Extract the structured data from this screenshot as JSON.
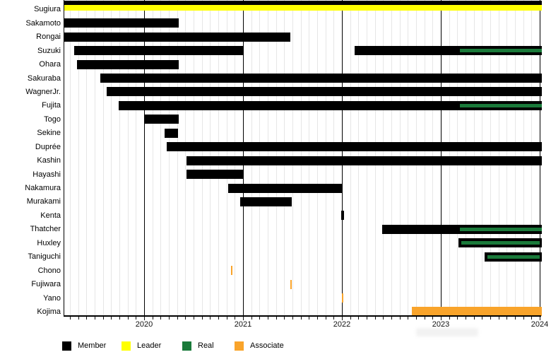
{
  "chart_data": {
    "type": "gantt",
    "title": "",
    "x_axis": {
      "start": 2019.19,
      "end": 2024.02,
      "year_ticks": [
        2020,
        2021,
        2022,
        2023,
        2024
      ],
      "minor_tick_unit": "month",
      "grid": true
    },
    "legend": [
      {
        "kind": "member",
        "label": "Member",
        "color": "#000000"
      },
      {
        "kind": "leader",
        "label": "Leader",
        "color": "#ffff00"
      },
      {
        "kind": "real",
        "label": "Real",
        "color": "#1a7a3a"
      },
      {
        "kind": "associate",
        "label": "Associate",
        "color": "#f9a42b"
      }
    ],
    "rows": [
      {
        "label": "Sugiura",
        "segments": [
          {
            "kind": "member",
            "start": 2019.19,
            "end": 2024.02,
            "lane": "upper"
          },
          {
            "kind": "leader",
            "start": 2019.19,
            "end": 2024.02,
            "lane": "lower"
          }
        ]
      },
      {
        "label": "Sakamoto",
        "segments": [
          {
            "kind": "member",
            "start": 2019.19,
            "end": 2020.35
          }
        ]
      },
      {
        "label": "Rongai",
        "segments": [
          {
            "kind": "member",
            "start": 2019.19,
            "end": 2021.48
          }
        ]
      },
      {
        "label": "Suzuki",
        "segments": [
          {
            "kind": "member",
            "start": 2019.29,
            "end": 2021.0
          },
          {
            "kind": "member",
            "start": 2022.13,
            "end": 2024.02
          },
          {
            "kind": "real",
            "start": 2023.19,
            "end": 2024.02
          }
        ]
      },
      {
        "label": "Ohara",
        "segments": [
          {
            "kind": "member",
            "start": 2019.32,
            "end": 2020.35
          }
        ]
      },
      {
        "label": "Sakuraba",
        "segments": [
          {
            "kind": "member",
            "start": 2019.56,
            "end": 2024.02
          }
        ]
      },
      {
        "label": "WagnerJr.",
        "segments": [
          {
            "kind": "member",
            "start": 2019.62,
            "end": 2024.02
          }
        ]
      },
      {
        "label": "Fujita",
        "segments": [
          {
            "kind": "member",
            "start": 2019.74,
            "end": 2024.02
          },
          {
            "kind": "real",
            "start": 2023.19,
            "end": 2024.02
          }
        ]
      },
      {
        "label": "Togo",
        "segments": [
          {
            "kind": "member",
            "start": 2020.0,
            "end": 2020.35
          }
        ]
      },
      {
        "label": "Sekine",
        "segments": [
          {
            "kind": "member",
            "start": 2020.21,
            "end": 2020.34
          }
        ]
      },
      {
        "label": "Duprée",
        "segments": [
          {
            "kind": "member",
            "start": 2020.23,
            "end": 2024.02
          }
        ]
      },
      {
        "label": "Kashin",
        "segments": [
          {
            "kind": "member",
            "start": 2020.43,
            "end": 2024.02
          }
        ]
      },
      {
        "label": "Hayashi",
        "segments": [
          {
            "kind": "member",
            "start": 2020.43,
            "end": 2021.0
          }
        ]
      },
      {
        "label": "Nakamura",
        "segments": [
          {
            "kind": "member",
            "start": 2020.85,
            "end": 2022.0
          }
        ]
      },
      {
        "label": "Murakami",
        "segments": [
          {
            "kind": "member",
            "start": 2020.97,
            "end": 2021.49
          }
        ]
      },
      {
        "label": "Kenta",
        "segments": [
          {
            "kind": "member",
            "start": 2021.99,
            "end": 2022.02
          }
        ]
      },
      {
        "label": "Thatcher",
        "segments": [
          {
            "kind": "member",
            "start": 2022.41,
            "end": 2024.02
          },
          {
            "kind": "real",
            "start": 2023.19,
            "end": 2024.02
          }
        ]
      },
      {
        "label": "Huxley",
        "segments": [
          {
            "kind": "member",
            "start": 2023.18,
            "end": 2024.02
          },
          {
            "kind": "real",
            "start": 2023.21,
            "end": 2024.0
          }
        ]
      },
      {
        "label": "Taniguchi",
        "segments": [
          {
            "kind": "member",
            "start": 2023.44,
            "end": 2024.02
          },
          {
            "kind": "real",
            "start": 2023.47,
            "end": 2024.0
          }
        ]
      },
      {
        "label": "Chono",
        "segments": [
          {
            "kind": "associate",
            "start": 2020.88,
            "end": 2020.89,
            "event": true
          }
        ]
      },
      {
        "label": "Fujiwara",
        "segments": [
          {
            "kind": "associate",
            "start": 2021.48,
            "end": 2021.49,
            "event": true
          }
        ]
      },
      {
        "label": "Yano",
        "segments": [
          {
            "kind": "associate",
            "start": 2022.0,
            "end": 2022.01,
            "event": true
          }
        ]
      },
      {
        "label": "Kojima",
        "segments": [
          {
            "kind": "associate",
            "start": 2022.71,
            "end": 2024.02
          }
        ]
      }
    ]
  }
}
